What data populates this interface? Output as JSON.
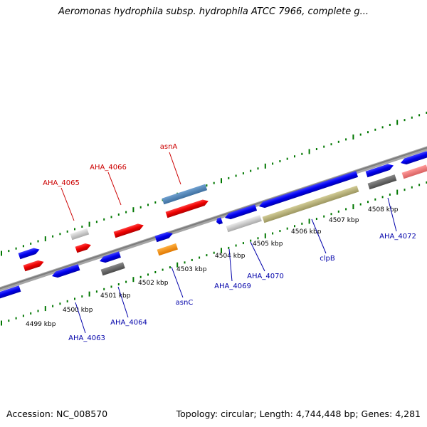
{
  "title": "Aeromonas hydrophila subsp. hydrophila ATCC 7966, complete g...",
  "footer": {
    "accession": "Accession: NC_008570",
    "topology": "Topology: circular; Length: 4,744,448 bp; Genes: 4,281"
  },
  "colors": {
    "forward_label": "#cc0000",
    "reverse_label": "#0000aa",
    "backbone": "#8a8a8a",
    "tick": "#007700"
  },
  "ticks": [
    {
      "label": "4499 kbp"
    },
    {
      "label": "4500 kbp"
    },
    {
      "label": "4501 kbp"
    },
    {
      "label": "4502 kbp"
    },
    {
      "label": "4503 kbp"
    },
    {
      "label": "4504 kbp"
    },
    {
      "label": "4505 kbp"
    },
    {
      "label": "4506 kbp"
    },
    {
      "label": "4507 kbp"
    },
    {
      "label": "4508 kbp"
    }
  ],
  "gene_labels": [
    {
      "text": "asnA",
      "strand": "forward"
    },
    {
      "text": "AHA_4066",
      "strand": "forward"
    },
    {
      "text": "AHA_4065",
      "strand": "forward"
    },
    {
      "text": "AHA_4063",
      "strand": "reverse"
    },
    {
      "text": "AHA_4064",
      "strand": "reverse"
    },
    {
      "text": "asnC",
      "strand": "reverse"
    },
    {
      "text": "AHA_4069",
      "strand": "reverse"
    },
    {
      "text": "AHA_4070",
      "strand": "reverse"
    },
    {
      "text": "clpB",
      "strand": "reverse"
    },
    {
      "text": "AHA_4072",
      "strand": "reverse"
    }
  ]
}
